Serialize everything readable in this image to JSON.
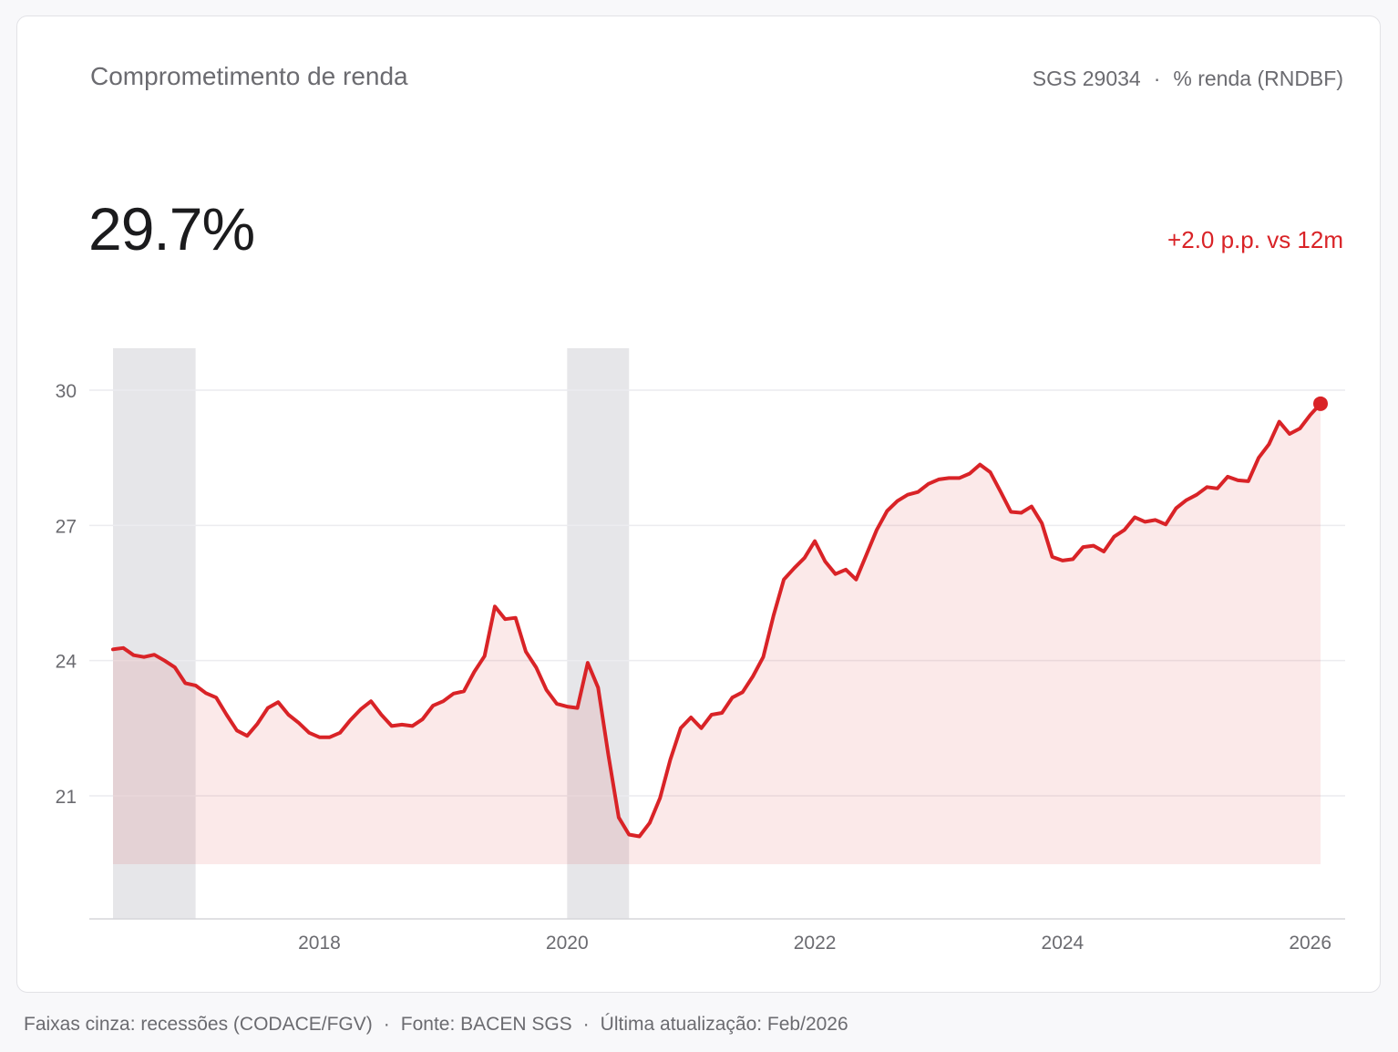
{
  "header": {
    "title": "Comprometimento de renda",
    "series_code": "SGS 29034",
    "unit": "% renda (RNDBF)",
    "separator": "·"
  },
  "headline": {
    "value": "29.7%",
    "delta": "+2.0 p.p. vs 12m"
  },
  "footer": {
    "recessions_note": "Faixas cinza: recessões (CODACE/FGV)",
    "source": "Fonte: BACEN SGS",
    "updated": "Última atualização: Feb/2026",
    "separator": "·"
  },
  "colors": {
    "line": "#d92327",
    "area": "#f9e3e3",
    "recession": "#e6e6e9",
    "grid": "#ececef",
    "tick_text": "#6b6b70"
  },
  "chart_data": {
    "type": "area",
    "ylim": [
      19.5,
      31.5
    ],
    "grid": true,
    "y_ticks": [
      21,
      24,
      27,
      30
    ],
    "x_ticks": [
      "2018",
      "2020",
      "2022",
      "2024",
      "2026"
    ],
    "x_range": [
      "2016-05",
      "2026-02"
    ],
    "recessions": [
      [
        "2016-05",
        "2016-12"
      ],
      [
        "2020-01",
        "2020-06"
      ]
    ],
    "series": [
      {
        "x": [
          "2016-05",
          "2016-06",
          "2016-07",
          "2016-08",
          "2016-09",
          "2016-10",
          "2016-11",
          "2016-12",
          "2017-01",
          "2017-02",
          "2017-03",
          "2017-04",
          "2017-05",
          "2017-06",
          "2017-07",
          "2017-08",
          "2017-09",
          "2017-10",
          "2017-11",
          "2017-12",
          "2018-01",
          "2018-02",
          "2018-03",
          "2018-04",
          "2018-05",
          "2018-06",
          "2018-07",
          "2018-08",
          "2018-09",
          "2018-10",
          "2018-11",
          "2018-12",
          "2019-01",
          "2019-02",
          "2019-03",
          "2019-04",
          "2019-05",
          "2019-06",
          "2019-07",
          "2019-08",
          "2019-09",
          "2019-10",
          "2019-11",
          "2019-12",
          "2020-01",
          "2020-02",
          "2020-03",
          "2020-04",
          "2020-05",
          "2020-06",
          "2020-07",
          "2020-08",
          "2020-09",
          "2020-10",
          "2020-11",
          "2020-12",
          "2021-01",
          "2021-02",
          "2021-03",
          "2021-04",
          "2021-05",
          "2021-06",
          "2021-07",
          "2021-08",
          "2021-09",
          "2021-10",
          "2021-11",
          "2021-12",
          "2022-01",
          "2022-02",
          "2022-03",
          "2022-04",
          "2022-05",
          "2022-06",
          "2022-07",
          "2022-08",
          "2022-09",
          "2022-10",
          "2022-11",
          "2022-12",
          "2023-01",
          "2023-02",
          "2023-03",
          "2023-04",
          "2023-05",
          "2023-06",
          "2023-07",
          "2023-08",
          "2023-09",
          "2023-10",
          "2023-11",
          "2023-12",
          "2024-01",
          "2024-02",
          "2024-03",
          "2024-04",
          "2024-05",
          "2024-06",
          "2024-07",
          "2024-08",
          "2024-09",
          "2024-10",
          "2024-11",
          "2024-12",
          "2025-01",
          "2025-02",
          "2025-03",
          "2025-04",
          "2025-05",
          "2025-06",
          "2025-07",
          "2025-08",
          "2025-09",
          "2025-10",
          "2025-11",
          "2025-12",
          "2026-01",
          "2026-02"
        ],
        "values": [
          24.25,
          24.28,
          24.12,
          24.08,
          24.13,
          24.0,
          23.85,
          23.5,
          23.45,
          23.28,
          23.18,
          22.8,
          22.45,
          22.33,
          22.6,
          22.95,
          23.08,
          22.8,
          22.62,
          22.4,
          22.3,
          22.3,
          22.4,
          22.68,
          22.92,
          23.1,
          22.8,
          22.55,
          22.58,
          22.55,
          22.7,
          23.0,
          23.1,
          23.27,
          23.32,
          23.75,
          24.1,
          25.2,
          24.92,
          24.95,
          24.2,
          23.85,
          23.35,
          23.04,
          22.98,
          22.95,
          23.95,
          23.4,
          21.9,
          20.52,
          20.14,
          20.1,
          20.4,
          20.95,
          21.8,
          22.5,
          22.74,
          22.5,
          22.8,
          22.84,
          23.18,
          23.3,
          23.65,
          24.08,
          25.0,
          25.8,
          26.05,
          26.28,
          26.65,
          26.2,
          25.92,
          26.02,
          25.8,
          26.35,
          26.9,
          27.32,
          27.54,
          27.68,
          27.74,
          27.92,
          28.02,
          28.05,
          28.05,
          28.15,
          28.35,
          28.18,
          27.75,
          27.3,
          27.28,
          27.42,
          27.05,
          26.3,
          26.22,
          26.25,
          26.52,
          26.55,
          26.42,
          26.75,
          26.9,
          27.18,
          27.08,
          27.12,
          27.02,
          27.38,
          27.56,
          27.68,
          27.85,
          27.82,
          28.08,
          28.0,
          27.98,
          28.5,
          28.8,
          29.3,
          29.03,
          29.15,
          29.45,
          29.7
        ]
      }
    ]
  }
}
